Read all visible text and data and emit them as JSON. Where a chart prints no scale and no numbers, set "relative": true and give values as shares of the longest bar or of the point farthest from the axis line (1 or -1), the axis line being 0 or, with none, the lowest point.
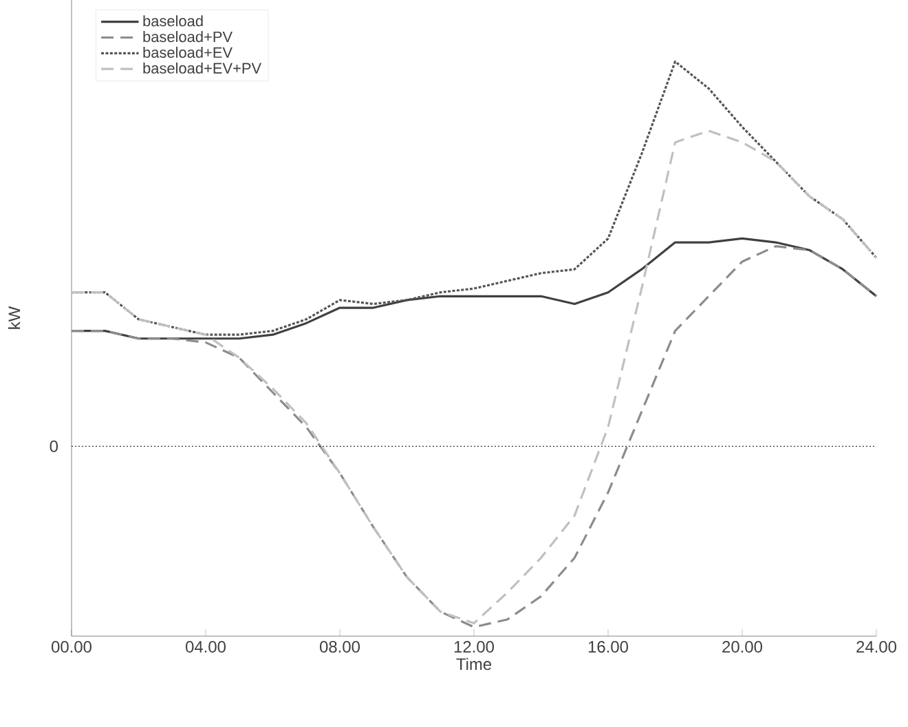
{
  "chart_data": {
    "type": "line",
    "xlabel": "Time",
    "ylabel": "kW",
    "relative": true,
    "x": [
      0,
      1,
      2,
      3,
      4,
      5,
      6,
      7,
      8,
      9,
      10,
      11,
      12,
      13,
      14,
      15,
      16,
      17,
      18,
      19,
      20,
      21,
      22,
      23,
      24
    ],
    "xlim": [
      0,
      24
    ],
    "xticks": [
      {
        "value": 0,
        "label": "00.00"
      },
      {
        "value": 4,
        "label": "04.00"
      },
      {
        "value": 8,
        "label": "08.00"
      },
      {
        "value": 12,
        "label": "12.00"
      },
      {
        "value": 16,
        "label": "16.00"
      },
      {
        "value": 20,
        "label": "20.00"
      },
      {
        "value": 24,
        "label": "24.00"
      }
    ],
    "series": [
      {
        "name": "baseload",
        "color": "#404040",
        "line_style": "solid",
        "values": [
          0.3,
          0.3,
          0.28,
          0.28,
          0.28,
          0.28,
          0.29,
          0.32,
          0.36,
          0.36,
          0.38,
          0.39,
          0.39,
          0.39,
          0.39,
          0.37,
          0.4,
          0.46,
          0.53,
          0.53,
          0.54,
          0.53,
          0.51,
          0.46,
          0.39
        ]
      },
      {
        "name": "baseload+PV",
        "color": "#8c8c8c",
        "line_style": "dashed",
        "values": [
          0.3,
          0.3,
          0.28,
          0.28,
          0.27,
          0.23,
          0.14,
          0.05,
          -0.07,
          -0.21,
          -0.34,
          -0.43,
          -0.47,
          -0.45,
          -0.39,
          -0.29,
          -0.12,
          0.09,
          0.3,
          0.39,
          0.48,
          0.52,
          0.51,
          0.46,
          0.39
        ]
      },
      {
        "name": "baseload+EV",
        "color": "#555555",
        "line_style": "dotted",
        "values": [
          0.4,
          0.4,
          0.33,
          0.31,
          0.29,
          0.29,
          0.3,
          0.33,
          0.38,
          0.37,
          0.38,
          0.4,
          0.41,
          0.43,
          0.45,
          0.46,
          0.54,
          0.76,
          1,
          0.93,
          0.83,
          0.74,
          0.65,
          0.59,
          0.49
        ]
      },
      {
        "name": "baseload+EV+PV",
        "color": "#c0c0c0",
        "line_style": "dashed",
        "values": [
          0.4,
          0.4,
          0.33,
          0.31,
          0.29,
          0.23,
          0.15,
          0.06,
          -0.07,
          -0.21,
          -0.34,
          -0.43,
          -0.46,
          -0.38,
          -0.29,
          -0.18,
          0.05,
          0.41,
          0.79,
          0.82,
          0.79,
          0.74,
          0.65,
          0.59,
          0.49
        ]
      }
    ],
    "ref_lines": [
      {
        "axis": "y",
        "value": 0,
        "label": "0",
        "color": "#000000",
        "line_style": "dotted"
      }
    ],
    "legend": "top left",
    "grid": false,
    "marker": "none"
  }
}
